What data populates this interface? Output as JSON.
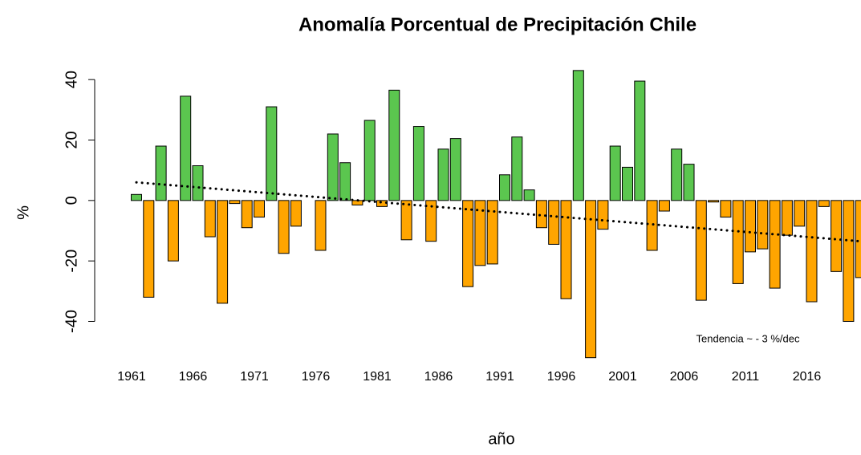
{
  "chart_data": {
    "type": "bar",
    "title": "Anomalía Porcentual de Precipitación Chile",
    "x_label": "año",
    "y_label": "%",
    "annotation": "Tendencia ~ - 3 %/dec",
    "categories": [
      1961,
      null,
      null,
      null,
      null,
      1966,
      null,
      null,
      null,
      null,
      1971,
      null,
      null,
      null,
      null,
      1976,
      null,
      null,
      null,
      null,
      1981,
      null,
      null,
      null,
      null,
      1986,
      null,
      null,
      null,
      null,
      1991,
      null,
      null,
      null,
      null,
      1996,
      null,
      null,
      null,
      null,
      2001,
      null,
      null,
      null,
      null,
      2006,
      null,
      null,
      null,
      null,
      2011,
      null,
      null,
      null,
      null,
      2016,
      null,
      null,
      null,
      null
    ],
    "values": [
      2,
      -32,
      18,
      -20,
      34.5,
      11.5,
      -12,
      -34,
      -1,
      -9,
      -5.5,
      31,
      -17.5,
      -8.5,
      0,
      -16.5,
      22,
      12.5,
      -1.5,
      26.5,
      -2,
      36.5,
      -13,
      24.5,
      -13.5,
      17,
      20.5,
      -28.5,
      -21.5,
      -21,
      8.5,
      21,
      3.5,
      -9,
      -14.5,
      -32.5,
      43,
      -52,
      -9.5,
      18,
      11,
      39.5,
      -16.5,
      -3.5,
      17,
      12,
      -33,
      -0.5,
      -5.5,
      -27.5,
      -17,
      -16,
      -29,
      -11.5,
      -8.5,
      -33.5,
      -2,
      -23.5,
      -40,
      -25.5
    ],
    "positive_color": "#5bc64f",
    "negative_color": "#ffa500",
    "trend_line": [
      6,
      -13.5
    ],
    "ylim": [
      -55,
      50
    ],
    "yticks": [
      -40,
      -20,
      0,
      20,
      40
    ]
  }
}
